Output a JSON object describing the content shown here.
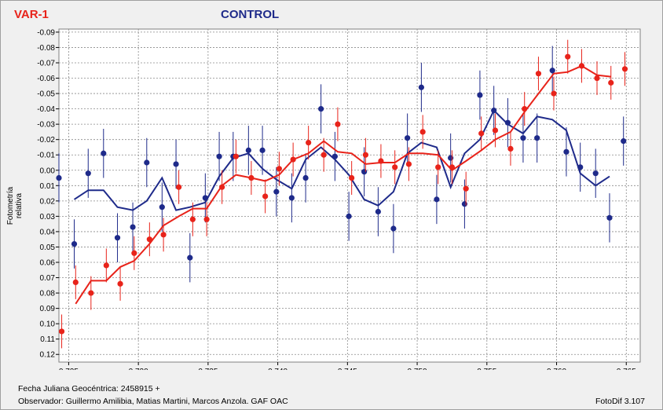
{
  "header": {
    "var_label": "VAR-1",
    "control_label": "CONTROL"
  },
  "footer": {
    "line1": "Fecha Juliana Geocéntrica: 2458915 +",
    "line2": "Observador: Guillermo Amilibia, Matias Martini,  Marcos Anzola. GAF OAC",
    "version": "FotoDif 3.107"
  },
  "colors": {
    "var": "#e8231a",
    "control": "#1e2a8a",
    "grid": "#8a8a8a",
    "plot_bg": "#ffffff"
  },
  "chart_data": {
    "type": "scatter",
    "title": "",
    "xlabel": "",
    "ylabel": "Fotometría relativa",
    "xlim": [
      0.7243,
      0.766
    ],
    "ylim": [
      0.125,
      -0.092
    ],
    "y_inverted": true,
    "grid": true,
    "x_ticks": [
      0.725,
      0.73,
      0.735,
      0.74,
      0.745,
      0.75,
      0.755,
      0.76,
      0.765
    ],
    "x_tick_labels": [
      "0.725",
      "0.730",
      "0.735",
      "0.740",
      "0.745",
      "0.750",
      "0.755",
      "0.760",
      "0.765"
    ],
    "y_ticks": [
      -0.09,
      -0.08,
      -0.07,
      -0.06,
      -0.05,
      -0.04,
      -0.03,
      -0.02,
      -0.01,
      0.0,
      0.01,
      0.02,
      0.03,
      0.04,
      0.05,
      0.06,
      0.07,
      0.08,
      0.09,
      0.1,
      0.11,
      0.12
    ],
    "y_tick_labels": [
      "-0.09",
      "-0.08",
      "-0.07",
      "-0.06",
      "-0.05",
      "-0.04",
      "-0.03",
      "-0.02",
      "-0.01",
      "0.00",
      "0.01",
      "0.02",
      "0.03",
      "0.04",
      "0.05",
      "0.06",
      "0.07",
      "0.08",
      "0.09",
      "0.10",
      "0.11",
      "0.12"
    ],
    "series": [
      {
        "name": "VAR-1",
        "color": "#e8231a",
        "error": 0.011,
        "points": [
          [
            0.7245,
            0.105
          ],
          [
            0.7255,
            0.073
          ],
          [
            0.7266,
            0.08
          ],
          [
            0.7277,
            0.062
          ],
          [
            0.7287,
            0.074
          ],
          [
            0.7297,
            0.054
          ],
          [
            0.7308,
            0.045
          ],
          [
            0.7318,
            0.042
          ],
          [
            0.7329,
            0.011
          ],
          [
            0.7339,
            0.032
          ],
          [
            0.7349,
            0.032
          ],
          [
            0.736,
            0.011
          ],
          [
            0.737,
            -0.009
          ],
          [
            0.7381,
            0.005
          ],
          [
            0.7391,
            0.017
          ],
          [
            0.7401,
            -0.001
          ],
          [
            0.7411,
            -0.007
          ],
          [
            0.7422,
            -0.018
          ],
          [
            0.7433,
            -0.01
          ],
          [
            0.7443,
            -0.03
          ],
          [
            0.7453,
            0.005
          ],
          [
            0.7463,
            -0.01
          ],
          [
            0.7474,
            -0.006
          ],
          [
            0.7484,
            -0.002
          ],
          [
            0.7494,
            -0.004
          ],
          [
            0.7504,
            -0.025
          ],
          [
            0.7515,
            -0.002
          ],
          [
            0.7525,
            -0.002
          ],
          [
            0.7535,
            0.012
          ],
          [
            0.7546,
            -0.024
          ],
          [
            0.7556,
            -0.026
          ],
          [
            0.7567,
            -0.014
          ],
          [
            0.7577,
            -0.04
          ],
          [
            0.7587,
            -0.063
          ],
          [
            0.7598,
            -0.05
          ],
          [
            0.7608,
            -0.074
          ],
          [
            0.7618,
            -0.068
          ],
          [
            0.7629,
            -0.06
          ],
          [
            0.7639,
            -0.057
          ],
          [
            0.7649,
            -0.066
          ]
        ],
        "line": [
          [
            0.7255,
            0.087
          ],
          [
            0.7266,
            0.072
          ],
          [
            0.7277,
            0.072
          ],
          [
            0.7287,
            0.063
          ],
          [
            0.7297,
            0.059
          ],
          [
            0.7308,
            0.048
          ],
          [
            0.7318,
            0.036
          ],
          [
            0.7329,
            0.03
          ],
          [
            0.7339,
            0.025
          ],
          [
            0.7349,
            0.025
          ],
          [
            0.736,
            0.01
          ],
          [
            0.737,
            0.003
          ],
          [
            0.7381,
            0.005
          ],
          [
            0.7391,
            0.007
          ],
          [
            0.7401,
            0.003
          ],
          [
            0.7411,
            -0.007
          ],
          [
            0.7422,
            -0.011
          ],
          [
            0.7433,
            -0.019
          ],
          [
            0.7443,
            -0.012
          ],
          [
            0.7453,
            -0.011
          ],
          [
            0.7463,
            -0.004
          ],
          [
            0.7474,
            -0.005
          ],
          [
            0.7484,
            -0.005
          ],
          [
            0.7494,
            -0.011
          ],
          [
            0.7504,
            -0.011
          ],
          [
            0.7515,
            -0.01
          ],
          [
            0.7525,
            0.0
          ],
          [
            0.7535,
            -0.006
          ],
          [
            0.7546,
            -0.013
          ],
          [
            0.7556,
            -0.02
          ],
          [
            0.7567,
            -0.025
          ],
          [
            0.7577,
            -0.038
          ],
          [
            0.7587,
            -0.05
          ],
          [
            0.7598,
            -0.063
          ],
          [
            0.7608,
            -0.064
          ],
          [
            0.7618,
            -0.068
          ],
          [
            0.7629,
            -0.062
          ],
          [
            0.7639,
            -0.061
          ]
        ]
      },
      {
        "name": "CONTROL",
        "color": "#1e2a8a",
        "error": 0.016,
        "points": [
          [
            0.7243,
            0.005
          ],
          [
            0.7254,
            0.048
          ],
          [
            0.7264,
            0.002
          ],
          [
            0.7275,
            -0.011
          ],
          [
            0.7285,
            0.044
          ],
          [
            0.7296,
            0.037
          ],
          [
            0.7306,
            -0.005
          ],
          [
            0.7317,
            0.024
          ],
          [
            0.7327,
            -0.004
          ],
          [
            0.7337,
            0.057
          ],
          [
            0.7348,
            0.018
          ],
          [
            0.7358,
            -0.009
          ],
          [
            0.7368,
            -0.009
          ],
          [
            0.7379,
            -0.013
          ],
          [
            0.7389,
            -0.013
          ],
          [
            0.7399,
            0.014
          ],
          [
            0.741,
            0.018
          ],
          [
            0.742,
            0.005
          ],
          [
            0.7431,
            -0.04
          ],
          [
            0.7441,
            -0.009
          ],
          [
            0.7451,
            0.03
          ],
          [
            0.7462,
            0.001
          ],
          [
            0.7472,
            0.027
          ],
          [
            0.7483,
            0.038
          ],
          [
            0.7493,
            -0.021
          ],
          [
            0.7503,
            -0.054
          ],
          [
            0.7514,
            0.019
          ],
          [
            0.7524,
            -0.008
          ],
          [
            0.7534,
            0.022
          ],
          [
            0.7545,
            -0.049
          ],
          [
            0.7555,
            -0.039
          ],
          [
            0.7565,
            -0.031
          ],
          [
            0.7576,
            -0.021
          ],
          [
            0.7586,
            -0.021
          ],
          [
            0.7597,
            -0.065
          ],
          [
            0.7607,
            -0.012
          ],
          [
            0.7617,
            -0.002
          ],
          [
            0.7628,
            0.002
          ],
          [
            0.7638,
            0.031
          ],
          [
            0.7648,
            -0.019
          ]
        ],
        "line": [
          [
            0.7254,
            0.019
          ],
          [
            0.7264,
            0.013
          ],
          [
            0.7275,
            0.013
          ],
          [
            0.7285,
            0.024
          ],
          [
            0.7296,
            0.026
          ],
          [
            0.7306,
            0.02
          ],
          [
            0.7317,
            0.005
          ],
          [
            0.7327,
            0.026
          ],
          [
            0.7337,
            0.024
          ],
          [
            0.7348,
            0.021
          ],
          [
            0.7358,
            0.004
          ],
          [
            0.7368,
            -0.008
          ],
          [
            0.7379,
            -0.011
          ],
          [
            0.7389,
            -0.001
          ],
          [
            0.7399,
            0.006
          ],
          [
            0.741,
            0.012
          ],
          [
            0.742,
            -0.007
          ],
          [
            0.7431,
            -0.015
          ],
          [
            0.7441,
            -0.007
          ],
          [
            0.7451,
            0.003
          ],
          [
            0.7462,
            0.019
          ],
          [
            0.7472,
            0.023
          ],
          [
            0.7483,
            0.014
          ],
          [
            0.7493,
            -0.011
          ],
          [
            0.7503,
            -0.018
          ],
          [
            0.7514,
            -0.015
          ],
          [
            0.7524,
            0.011
          ],
          [
            0.7534,
            -0.011
          ],
          [
            0.7545,
            -0.02
          ],
          [
            0.7555,
            -0.039
          ],
          [
            0.7565,
            -0.03
          ],
          [
            0.7576,
            -0.024
          ],
          [
            0.7586,
            -0.035
          ],
          [
            0.7597,
            -0.033
          ],
          [
            0.7607,
            -0.026
          ],
          [
            0.7617,
            0.002
          ],
          [
            0.7628,
            0.01
          ],
          [
            0.7638,
            0.004
          ]
        ]
      }
    ]
  }
}
